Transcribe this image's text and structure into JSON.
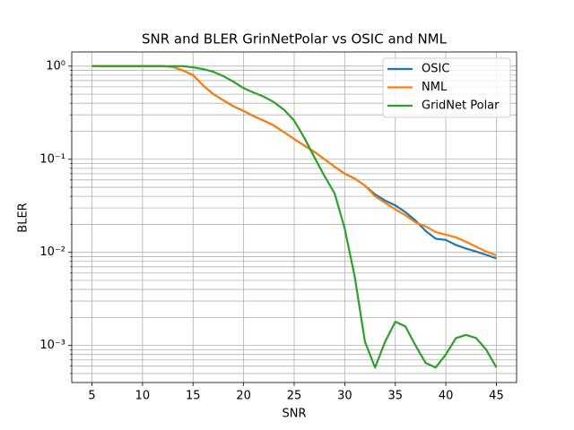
{
  "chart_data": {
    "type": "line",
    "title": "SNR and BLER GrinNetPolar vs OSIC and NML",
    "xlabel": "SNR",
    "ylabel": "BLER",
    "x": [
      5,
      6,
      7,
      8,
      9,
      10,
      11,
      12,
      13,
      14,
      15,
      16,
      17,
      18,
      19,
      20,
      21,
      22,
      23,
      24,
      25,
      26,
      27,
      28,
      29,
      30,
      31,
      32,
      33,
      34,
      35,
      36,
      37,
      38,
      39,
      40,
      41,
      42,
      43,
      44,
      45
    ],
    "series": [
      {
        "name": "OSIC",
        "color": "#1f77b4",
        "values": [
          1,
          1,
          1,
          1,
          1,
          1,
          1,
          1,
          0.98,
          0.9,
          0.8,
          0.62,
          0.5,
          0.43,
          0.37,
          0.33,
          0.29,
          0.26,
          0.23,
          0.195,
          0.165,
          0.14,
          0.12,
          0.1,
          0.083,
          0.07,
          0.062,
          0.052,
          0.042,
          0.036,
          0.032,
          0.027,
          0.022,
          0.017,
          0.014,
          0.0136,
          0.012,
          0.011,
          0.0102,
          0.0094,
          0.0086
        ]
      },
      {
        "name": "NML",
        "color": "#ff7f0e",
        "values": [
          1,
          1,
          1,
          1,
          1,
          1,
          1,
          1,
          0.98,
          0.9,
          0.8,
          0.62,
          0.5,
          0.43,
          0.37,
          0.33,
          0.29,
          0.26,
          0.23,
          0.195,
          0.165,
          0.14,
          0.12,
          0.1,
          0.083,
          0.07,
          0.062,
          0.052,
          0.04,
          0.034,
          0.029,
          0.025,
          0.021,
          0.019,
          0.0165,
          0.0155,
          0.0145,
          0.013,
          0.0115,
          0.0102,
          0.0093
        ]
      },
      {
        "name": "GridNet Polar",
        "color": "#2ca02c",
        "values": [
          1,
          1,
          1,
          1,
          1,
          1,
          1,
          1,
          1,
          1,
          0.97,
          0.93,
          0.87,
          0.78,
          0.68,
          0.58,
          0.52,
          0.47,
          0.41,
          0.34,
          0.26,
          0.17,
          0.105,
          0.066,
          0.043,
          0.018,
          0.0054,
          0.0011,
          0.00058,
          0.0011,
          0.0018,
          0.0016,
          0.001,
          0.00065,
          0.00058,
          0.0008,
          0.0012,
          0.0013,
          0.0012,
          0.0009,
          0.00058
        ]
      }
    ],
    "xlim": [
      3,
      47
    ],
    "xticks": [
      5,
      10,
      15,
      20,
      25,
      30,
      35,
      40,
      45
    ],
    "ylim": [
      0.0004,
      1.42
    ],
    "ylog": true,
    "yticks": [
      {
        "value": 1,
        "label": "10⁰"
      },
      {
        "value": 0.1,
        "label": "10⁻¹"
      },
      {
        "value": 0.01,
        "label": "10⁻²"
      },
      {
        "value": 0.001,
        "label": "10⁻³"
      }
    ],
    "yminorticks": [
      0.0005,
      0.0006,
      0.0007,
      0.0008,
      0.0009,
      0.002,
      0.003,
      0.004,
      0.005,
      0.006,
      0.007,
      0.008,
      0.009,
      0.02,
      0.03,
      0.04,
      0.05,
      0.06,
      0.07,
      0.08,
      0.09,
      0.2,
      0.3,
      0.4,
      0.5,
      0.6,
      0.7,
      0.8,
      0.9
    ],
    "grid": true,
    "legend": "upper right"
  }
}
